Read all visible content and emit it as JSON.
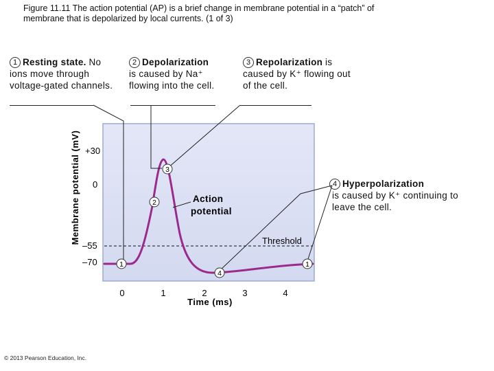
{
  "caption": {
    "line1": "Figure 11.11  The action potential (AP) is a brief change in membrane potential in a “patch” of",
    "line2": "membrane that is depolarized by local currents. (1 of 3)"
  },
  "stages": [
    {
      "number": "1",
      "title": "Resting state.",
      "description": "No ions move through voltage-gated channels."
    },
    {
      "number": "2",
      "title": "Depolarization",
      "description": "is caused by Na⁺ flowing into the cell."
    },
    {
      "number": "3",
      "title": "Repolarization",
      "description": "is caused by K⁺ flowing out of the cell."
    },
    {
      "number": "4",
      "title": "Hyperpolarization",
      "description": "is caused by K⁺ continuing to leave the cell."
    }
  ],
  "graph": {
    "ylabel": "Membrane potential (mV)",
    "xlabel": "Time (ms)",
    "y_ticks": [
      "+30",
      "0",
      "–55",
      "–70"
    ],
    "x_ticks": [
      "0",
      "1",
      "2",
      "3",
      "4"
    ],
    "threshold_label": "Threshold",
    "curve_label_line1": "Action",
    "curve_label_line2": "potential",
    "markers": [
      "1",
      "2",
      "3",
      "4",
      "1"
    ]
  },
  "colors": {
    "curve": "#9b2a8c",
    "panel": "#d9dff3",
    "panel_border": "#9fa8cf",
    "threshold": "#555555"
  },
  "copyright": "© 2013 Pearson Education, Inc."
}
